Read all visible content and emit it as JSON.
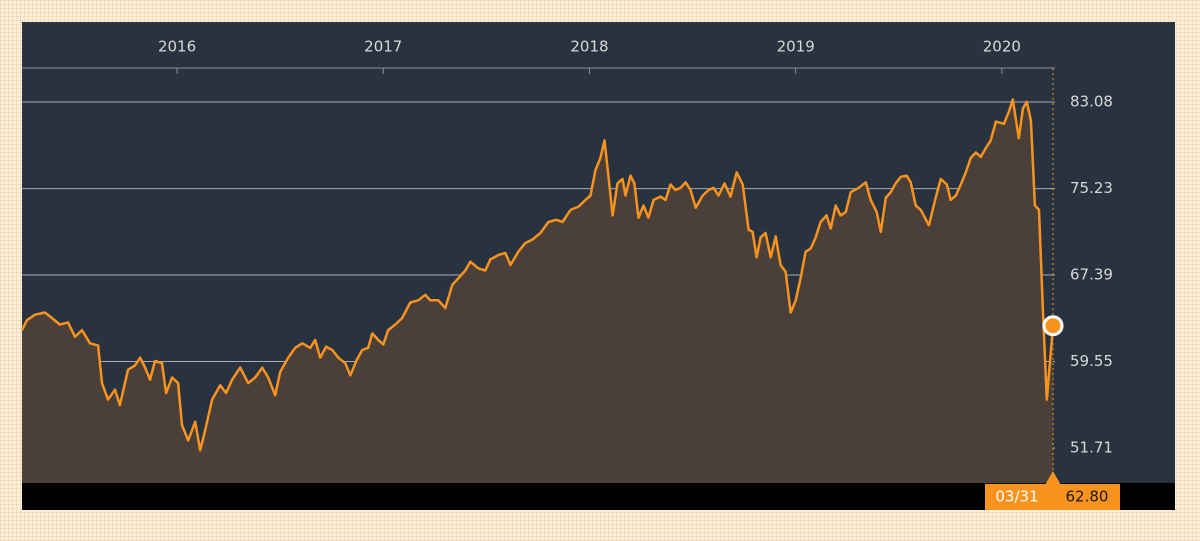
{
  "chart_data": {
    "type": "line",
    "color": "#f7931e",
    "area": true,
    "grid": true,
    "x": [
      2015.248,
      2015.272,
      2015.311,
      2015.359,
      2015.393,
      2015.432,
      2015.471,
      2015.505,
      2015.539,
      2015.578,
      2015.617,
      2015.636,
      2015.665,
      2015.699,
      2015.723,
      2015.762,
      2015.796,
      2015.821,
      2015.845,
      2015.869,
      2015.893,
      2015.927,
      2015.947,
      2015.976,
      2016.005,
      2016.024,
      2016.054,
      2016.088,
      2016.112,
      2016.136,
      2016.17,
      2016.209,
      2016.238,
      2016.267,
      2016.306,
      2016.345,
      2016.379,
      2016.413,
      2016.442,
      2016.476,
      2016.5,
      2016.539,
      2016.573,
      2016.607,
      2016.646,
      2016.67,
      2016.694,
      2016.723,
      2016.753,
      2016.782,
      2016.816,
      2016.84,
      2016.869,
      2016.898,
      2016.927,
      2016.947,
      2016.976,
      2017.0,
      2017.024,
      2017.058,
      2017.092,
      2017.131,
      2017.17,
      2017.204,
      2017.228,
      2017.267,
      2017.301,
      2017.335,
      2017.364,
      2017.398,
      2017.422,
      2017.461,
      2017.495,
      2017.519,
      2017.558,
      2017.592,
      2017.617,
      2017.655,
      2017.689,
      2017.723,
      2017.762,
      2017.801,
      2017.84,
      2017.869,
      2017.908,
      2017.947,
      2017.981,
      2018.005,
      2018.029,
      2018.053,
      2018.073,
      2018.092,
      2018.112,
      2018.136,
      2018.16,
      2018.175,
      2018.199,
      2018.218,
      2018.238,
      2018.262,
      2018.286,
      2018.311,
      2018.345,
      2018.369,
      2018.393,
      2018.417,
      2018.442,
      2018.466,
      2018.49,
      2018.515,
      2018.549,
      2018.578,
      2018.602,
      2018.626,
      2018.655,
      2018.684,
      2018.714,
      2018.743,
      2018.772,
      2018.791,
      2018.811,
      2018.83,
      2018.854,
      2018.879,
      2018.903,
      2018.927,
      2018.951,
      2018.976,
      2019.0,
      2019.024,
      2019.048,
      2019.073,
      2019.097,
      2019.121,
      2019.15,
      2019.17,
      2019.194,
      2019.218,
      2019.243,
      2019.267,
      2019.306,
      2019.34,
      2019.364,
      2019.393,
      2019.413,
      2019.437,
      2019.461,
      2019.485,
      2019.51,
      2019.539,
      2019.558,
      2019.582,
      2019.607,
      2019.646,
      2019.679,
      2019.704,
      2019.733,
      2019.752,
      2019.777,
      2019.801,
      2019.825,
      2019.849,
      2019.874,
      2019.898,
      2019.922,
      2019.946,
      2019.971,
      2020.01,
      2020.034,
      2020.053,
      2020.082,
      2020.102,
      2020.121,
      2020.141,
      2020.16,
      2020.18,
      2020.199,
      2020.218,
      2020.248
    ],
    "values": [
      62.4,
      63.3,
      63.8,
      64.0,
      63.5,
      62.9,
      63.1,
      61.8,
      62.4,
      61.2,
      61.0,
      57.6,
      56.1,
      57.0,
      55.6,
      58.8,
      59.2,
      59.9,
      59.0,
      57.9,
      59.6,
      59.4,
      56.7,
      58.1,
      57.6,
      53.8,
      52.4,
      54.1,
      51.5,
      53.3,
      56.1,
      57.4,
      56.7,
      57.9,
      59.0,
      57.6,
      58.1,
      59.0,
      58.1,
      56.5,
      58.6,
      59.9,
      60.8,
      61.2,
      60.8,
      61.5,
      59.9,
      60.9,
      60.6,
      59.9,
      59.4,
      58.3,
      59.6,
      60.6,
      60.8,
      62.1,
      61.5,
      61.1,
      62.4,
      62.9,
      63.5,
      64.9,
      65.1,
      65.6,
      65.1,
      65.1,
      64.4,
      66.5,
      67.1,
      67.8,
      68.6,
      68.0,
      67.8,
      68.8,
      69.2,
      69.4,
      68.3,
      69.5,
      70.3,
      70.6,
      71.2,
      72.2,
      72.4,
      72.2,
      73.3,
      73.6,
      74.2,
      74.6,
      76.9,
      78.0,
      79.6,
      76.4,
      72.8,
      75.7,
      76.1,
      74.6,
      76.4,
      75.7,
      72.6,
      73.7,
      72.6,
      74.2,
      74.5,
      74.2,
      75.6,
      75.1,
      75.3,
      75.8,
      75.1,
      73.5,
      74.6,
      75.1,
      75.3,
      74.6,
      75.7,
      74.5,
      76.7,
      75.6,
      71.5,
      71.3,
      69.0,
      70.8,
      71.2,
      69.0,
      70.9,
      68.3,
      67.7,
      64.0,
      65.1,
      67.1,
      69.5,
      69.8,
      70.8,
      72.2,
      72.8,
      71.6,
      73.7,
      72.8,
      73.1,
      74.9,
      75.3,
      75.8,
      74.2,
      73.1,
      71.3,
      74.4,
      74.9,
      75.7,
      76.3,
      76.4,
      75.8,
      73.7,
      73.3,
      71.9,
      74.4,
      76.1,
      75.6,
      74.2,
      74.6,
      75.6,
      76.7,
      78.0,
      78.5,
      78.1,
      78.9,
      79.6,
      81.3,
      81.1,
      82.2,
      83.3,
      79.8,
      82.5,
      83.1,
      81.4,
      73.7,
      73.3,
      64.2,
      56.1,
      62.8
    ],
    "xlim": [
      2015.248,
      2020.248
    ],
    "xticks": [
      2016,
      2017,
      2018,
      2019,
      2020
    ],
    "ylim": [
      48.54,
      86.16
    ],
    "yticks": [
      51.71,
      59.55,
      67.39,
      75.23,
      83.08
    ],
    "last": {
      "label": "03/31",
      "value": 62.8,
      "value_label": "62.80"
    }
  }
}
